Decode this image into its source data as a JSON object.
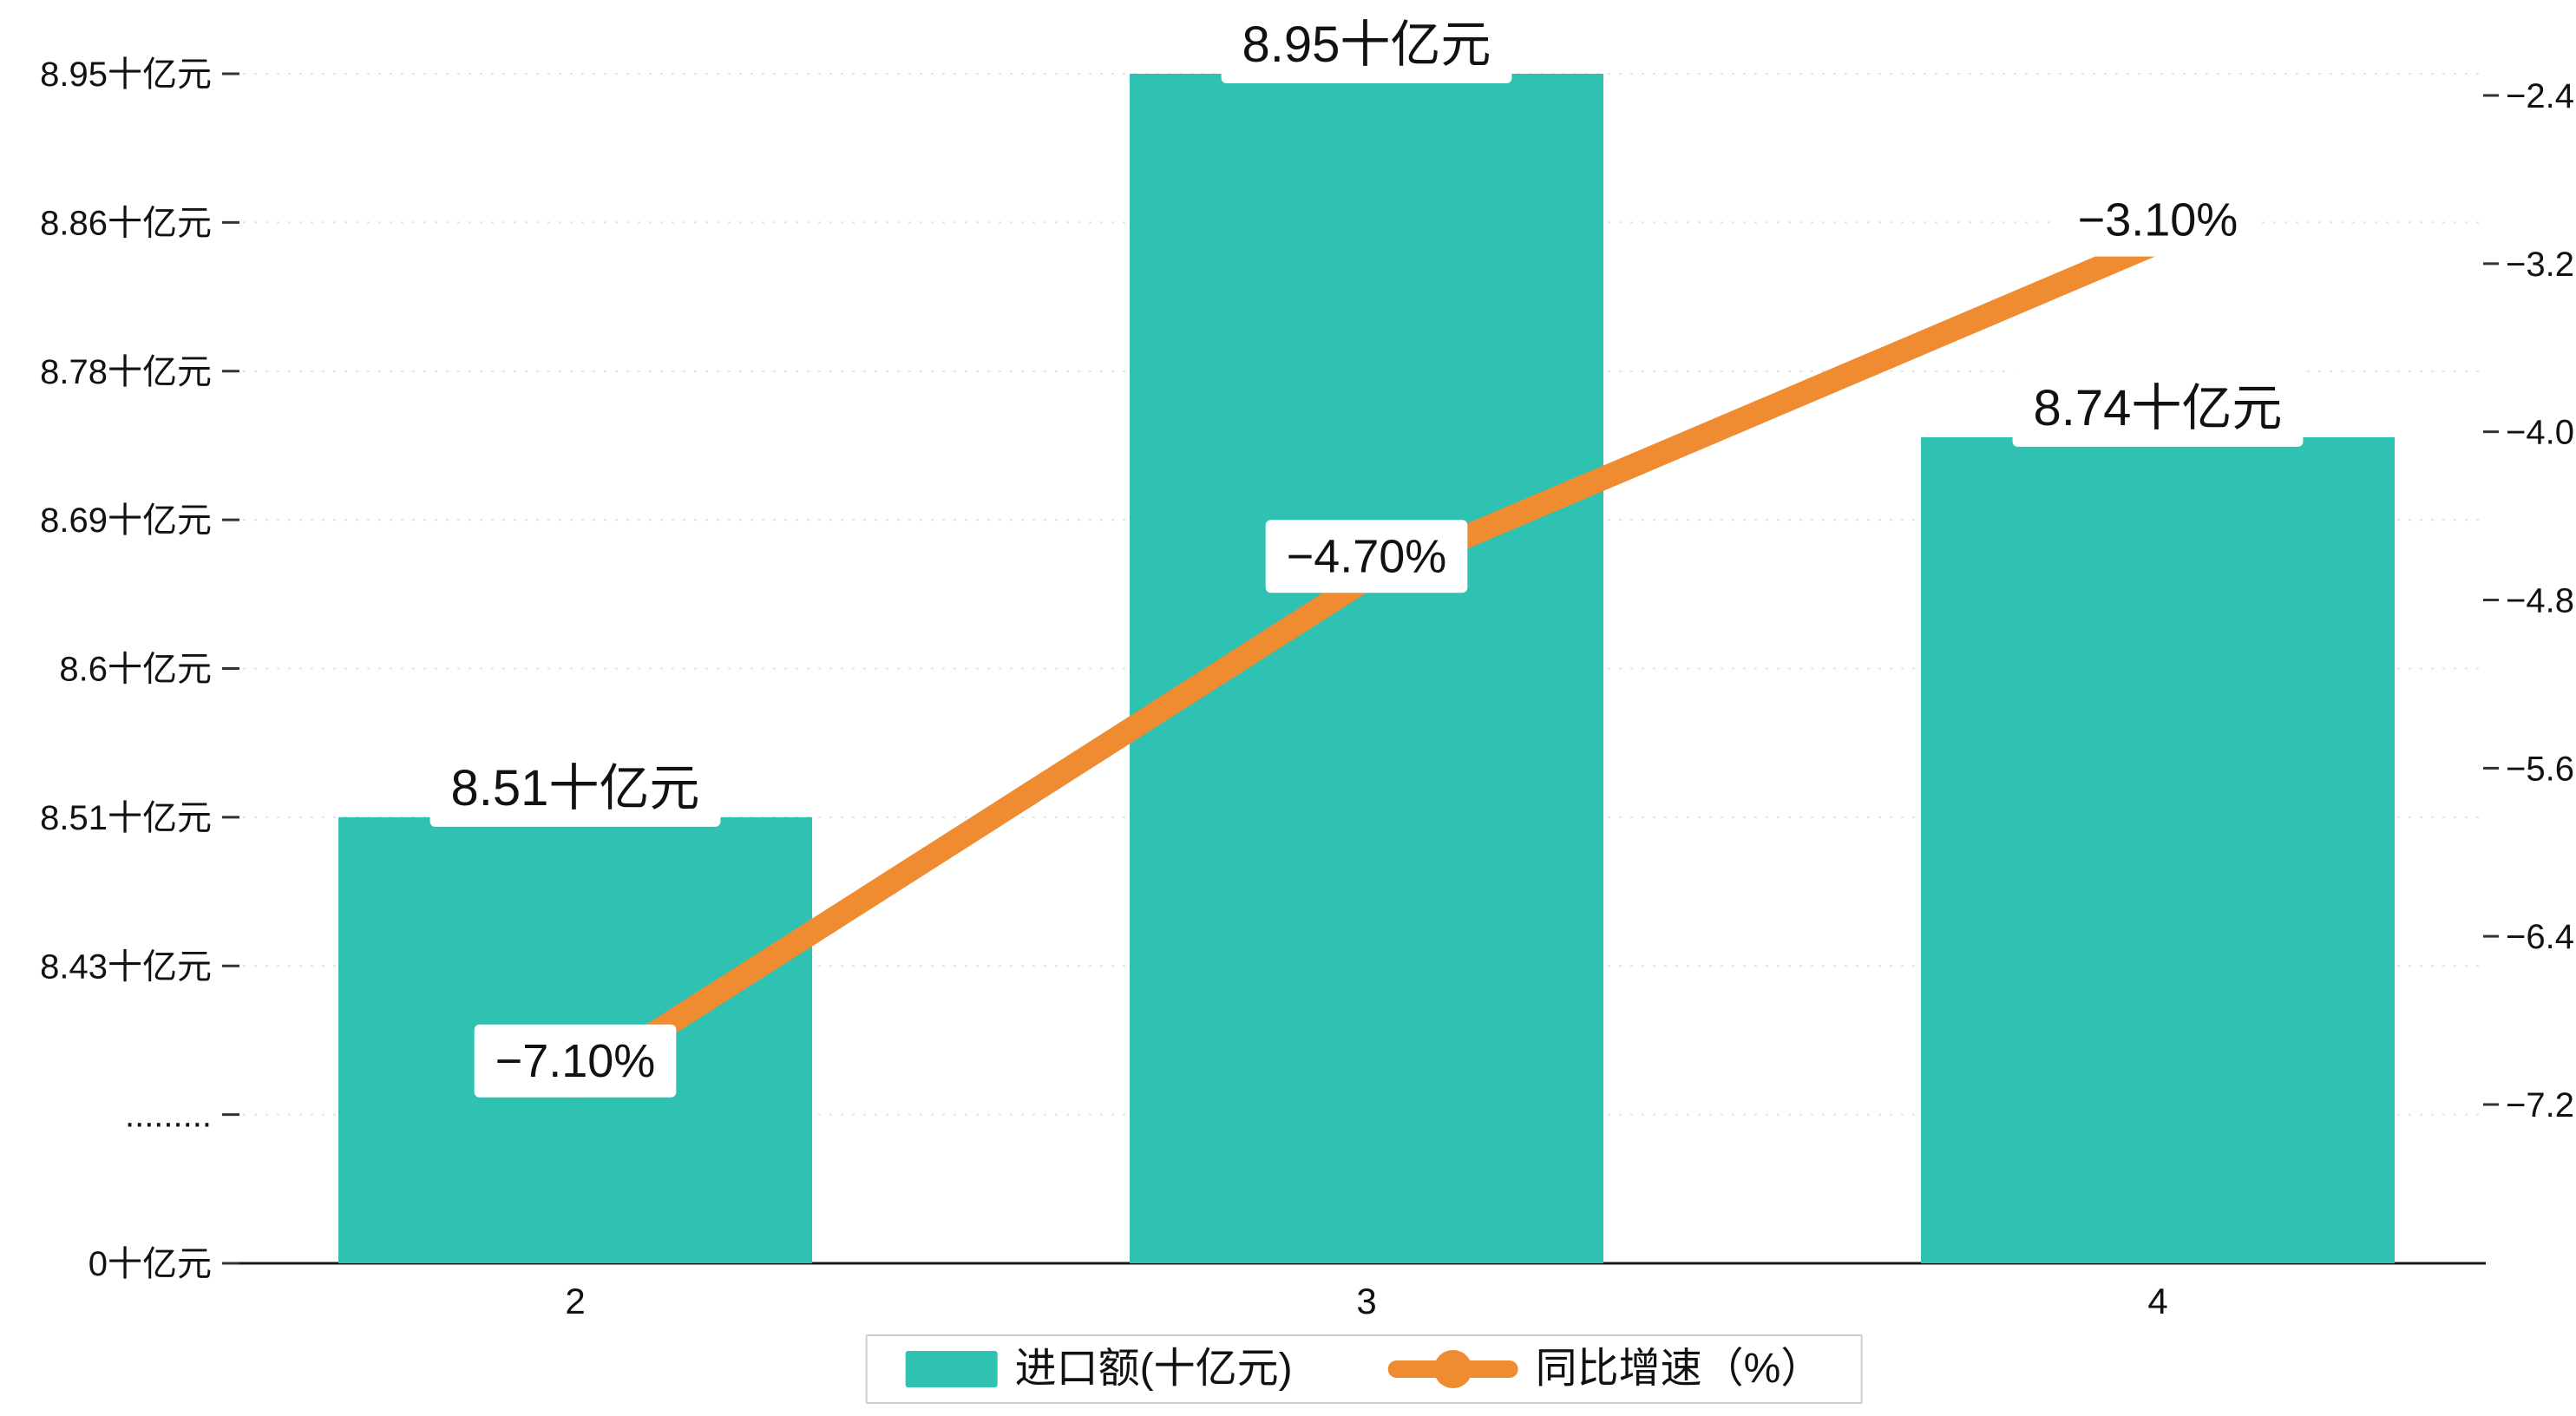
{
  "chart": {
    "background": "#ffffff",
    "colors": {
      "bar": "#2fc1b1",
      "line": "#ef8b31",
      "axis_text": "#111111",
      "grid": "#e3e3e3",
      "axis_line": "#1a1a1a",
      "label_box": "#ffffff",
      "legend_border": "#cfcfcf"
    }
  },
  "chart_data": {
    "type": "bar",
    "categories": [
      "2",
      "3",
      "4"
    ],
    "series": [
      {
        "name": "进口额(十亿元)",
        "type": "bar",
        "axis": "left",
        "color": "#2fc1b1",
        "values": [
          8.51,
          8.95,
          8.74
        ],
        "data_labels": [
          "8.51十亿元",
          "8.95十亿元",
          "8.74十亿元"
        ]
      },
      {
        "name": "同比增速（%）",
        "type": "line",
        "axis": "right",
        "color": "#ef8b31",
        "values": [
          -7.1,
          -4.7,
          -3.1
        ],
        "data_labels": [
          "−7.10%",
          "−4.70%",
          "−3.10%"
        ]
      }
    ],
    "left_axis": {
      "unit": "十亿元",
      "tick_labels": [
        "8.95十亿元",
        "8.86十亿元",
        "8.78十亿元",
        "8.69十亿元",
        "8.6十亿元",
        "8.51十亿元",
        "8.43十亿元",
        ".........",
        "0十亿元"
      ],
      "tick_values": [
        8.95,
        8.86,
        8.78,
        8.69,
        8.6,
        8.51,
        8.43,
        null,
        0
      ],
      "axis_break": true
    },
    "right_axis": {
      "tick_labels": [
        "−2.4",
        "−3.2",
        "−4.0",
        "−4.8",
        "−5.6",
        "−6.4",
        "−7.2"
      ],
      "tick_values": [
        -2.4,
        -3.2,
        -4.0,
        -4.8,
        -5.6,
        -6.4,
        -7.2
      ]
    },
    "x_axis": {
      "tick_labels": [
        "2",
        "3",
        "4"
      ]
    },
    "legend": {
      "position": "bottom-center",
      "entries": [
        {
          "label": "进口额(十亿元)",
          "marker": "bar-swatch",
          "color": "#2fc1b1"
        },
        {
          "label": "同比增速（%）",
          "marker": "line-with-dot",
          "color": "#ef8b31"
        }
      ]
    },
    "grid": "horizontal-dashed",
    "title": "",
    "xlabel": "",
    "ylabel_left": "十亿元",
    "ylabel_right": "%"
  }
}
